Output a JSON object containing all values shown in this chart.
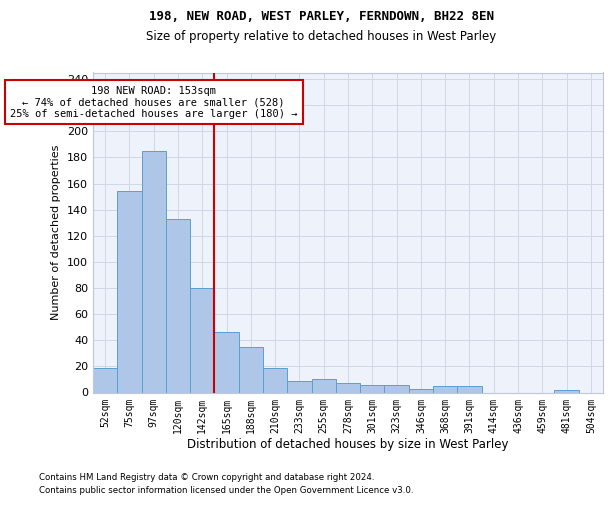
{
  "title1": "198, NEW ROAD, WEST PARLEY, FERNDOWN, BH22 8EN",
  "title2": "Size of property relative to detached houses in West Parley",
  "xlabel": "Distribution of detached houses by size in West Parley",
  "ylabel": "Number of detached properties",
  "footer1": "Contains HM Land Registry data © Crown copyright and database right 2024.",
  "footer2": "Contains public sector information licensed under the Open Government Licence v3.0.",
  "bar_labels": [
    "52sqm",
    "75sqm",
    "97sqm",
    "120sqm",
    "142sqm",
    "165sqm",
    "188sqm",
    "210sqm",
    "233sqm",
    "255sqm",
    "278sqm",
    "301sqm",
    "323sqm",
    "346sqm",
    "368sqm",
    "391sqm",
    "414sqm",
    "436sqm",
    "459sqm",
    "481sqm",
    "504sqm"
  ],
  "bar_values": [
    19,
    154,
    185,
    133,
    80,
    46,
    35,
    19,
    9,
    10,
    7,
    6,
    6,
    3,
    5,
    5,
    0,
    0,
    0,
    2,
    0
  ],
  "bar_color": "#aec6e8",
  "bar_edge_color": "#5a9fd4",
  "vline_color": "#cc0000",
  "annotation_text": "198 NEW ROAD: 153sqm\n← 74% of detached houses are smaller (528)\n25% of semi-detached houses are larger (180) →",
  "annotation_box_color": "#cc0000",
  "ylim": [
    0,
    245
  ],
  "yticks": [
    0,
    20,
    40,
    60,
    80,
    100,
    120,
    140,
    160,
    180,
    200,
    220,
    240
  ],
  "grid_color": "#d0d8e8",
  "bg_color": "#eef2fb"
}
